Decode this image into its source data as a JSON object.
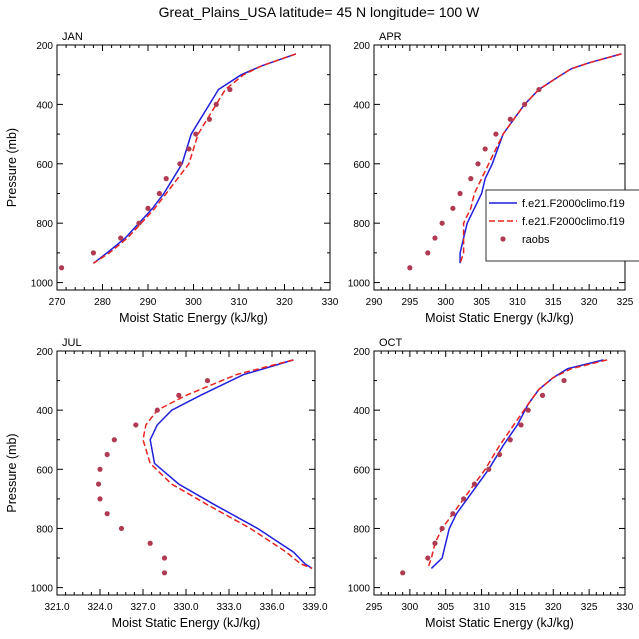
{
  "title": "Great_Plains_USA  latitude= 45 N longitude= 100 W",
  "series_names": [
    "f.e21.F2000climo.f19",
    "f.e21.F2000climo.f19",
    "raobs"
  ],
  "colors": {
    "model1": "#1f1fdd",
    "model2": "#e8231f",
    "obs": "#b03a52"
  },
  "chart_data": [
    {
      "type": "line",
      "panel": "JAN",
      "xlabel": "Moist Static Energy (kJ/kg)",
      "ylabel": "Pressure (mb)",
      "xlim": [
        270,
        330
      ],
      "ylim": [
        1025,
        200
      ],
      "xticks": [
        "270",
        "280",
        "290",
        "300",
        "310",
        "320",
        "330"
      ],
      "yticks": [
        "200",
        "400",
        "600",
        "800",
        "1000"
      ],
      "legend": false,
      "series": [
        {
          "name": "f.e21.F2000climo.f19",
          "style": "solid",
          "points": [
            [
              322.5,
              230
            ],
            [
              315,
              270
            ],
            [
              310.5,
              300
            ],
            [
              305.5,
              350
            ],
            [
              303.5,
              400
            ],
            [
              301.5,
              450
            ],
            [
              299.5,
              500
            ],
            [
              297.5,
              600
            ],
            [
              295.5,
              650
            ],
            [
              293.5,
              700
            ],
            [
              291,
              750
            ],
            [
              288,
              800
            ],
            [
              285,
              850
            ],
            [
              281,
              900
            ],
            [
              278,
              935
            ]
          ]
        },
        {
          "name": "f.e21.F2000climo.f19",
          "style": "dashed",
          "points": [
            [
              322.5,
              230
            ],
            [
              315,
              270
            ],
            [
              311,
              300
            ],
            [
              307,
              350
            ],
            [
              305,
              400
            ],
            [
              303,
              450
            ],
            [
              301,
              500
            ],
            [
              299,
              600
            ],
            [
              296.5,
              650
            ],
            [
              294,
              700
            ],
            [
              291.5,
              750
            ],
            [
              288.5,
              800
            ],
            [
              285.5,
              850
            ],
            [
              281.5,
              900
            ],
            [
              278,
              935
            ]
          ]
        },
        {
          "name": "raobs",
          "style": "points",
          "points": [
            [
              271,
              950
            ],
            [
              278,
              900
            ],
            [
              284,
              850
            ],
            [
              288,
              800
            ],
            [
              290,
              750
            ],
            [
              292.5,
              700
            ],
            [
              294,
              650
            ],
            [
              297,
              600
            ],
            [
              299,
              550
            ],
            [
              300.5,
              500
            ],
            [
              303.5,
              450
            ],
            [
              305,
              400
            ],
            [
              308,
              350
            ]
          ]
        }
      ]
    },
    {
      "type": "line",
      "panel": "APR",
      "xlabel": "Moist Static Energy (kJ/kg)",
      "ylabel": "",
      "xlim": [
        290,
        325
      ],
      "ylim": [
        1025,
        200
      ],
      "xticks": [
        "290",
        "295",
        "300",
        "305",
        "310",
        "315",
        "320",
        "325"
      ],
      "yticks": [
        "200",
        "400",
        "600",
        "800",
        "1000"
      ],
      "legend": true,
      "legend_position": "right",
      "series": [
        {
          "name": "f.e21.F2000climo.f19",
          "style": "solid",
          "points": [
            [
              324.5,
              230
            ],
            [
              320,
              260
            ],
            [
              317.5,
              280
            ],
            [
              315.5,
              310
            ],
            [
              313,
              350
            ],
            [
              311,
              400
            ],
            [
              309.5,
              450
            ],
            [
              308,
              500
            ],
            [
              306.5,
              600
            ],
            [
              305.5,
              650
            ],
            [
              305,
              700
            ],
            [
              304,
              750
            ],
            [
              303,
              800
            ],
            [
              302.5,
              850
            ],
            [
              302,
              900
            ],
            [
              302,
              935
            ]
          ]
        },
        {
          "name": "f.e21.F2000climo.f19",
          "style": "dashed",
          "points": [
            [
              324.5,
              230
            ],
            [
              320,
              260
            ],
            [
              317.5,
              280
            ],
            [
              315.5,
              310
            ],
            [
              313,
              350
            ],
            [
              311,
              400
            ],
            [
              309.5,
              450
            ],
            [
              308,
              500
            ],
            [
              306,
              600
            ],
            [
              305,
              650
            ],
            [
              304,
              700
            ],
            [
              303.5,
              750
            ],
            [
              302.5,
              800
            ],
            [
              302.5,
              850
            ],
            [
              302.5,
              900
            ],
            [
              302,
              935
            ]
          ]
        },
        {
          "name": "raobs",
          "style": "points",
          "points": [
            [
              295,
              950
            ],
            [
              297.5,
              900
            ],
            [
              298.5,
              850
            ],
            [
              299.5,
              800
            ],
            [
              301,
              750
            ],
            [
              302,
              700
            ],
            [
              303.5,
              650
            ],
            [
              304.5,
              600
            ],
            [
              305.5,
              550
            ],
            [
              307,
              500
            ],
            [
              309,
              450
            ],
            [
              311,
              400
            ],
            [
              313,
              350
            ]
          ]
        }
      ]
    },
    {
      "type": "line",
      "panel": "JUL",
      "xlabel": "Moist Static Energy (kJ/kg)",
      "ylabel": "Pressure (mb)",
      "xlim": [
        321,
        339
      ],
      "ylim": [
        1025,
        200
      ],
      "xticks": [
        "321.0",
        "324.0",
        "327.0",
        "330.0",
        "333.0",
        "336.0",
        "339.0"
      ],
      "yticks": [
        "200",
        "400",
        "600",
        "800",
        "1000"
      ],
      "legend": false,
      "series": [
        {
          "name": "f.e21.F2000climo.f19",
          "style": "solid",
          "points": [
            [
              337.5,
              230
            ],
            [
              334,
              280
            ],
            [
              331,
              350
            ],
            [
              329,
              400
            ],
            [
              328,
              450
            ],
            [
              327.5,
              500
            ],
            [
              327.8,
              580
            ],
            [
              329.5,
              650
            ],
            [
              332,
              720
            ],
            [
              335,
              800
            ],
            [
              337.5,
              880
            ],
            [
              338.3,
              920
            ],
            [
              338.8,
              935
            ]
          ]
        },
        {
          "name": "f.e21.F2000climo.f19",
          "style": "dashed",
          "points": [
            [
              337.5,
              230
            ],
            [
              333.5,
              280
            ],
            [
              330,
              350
            ],
            [
              328,
              400
            ],
            [
              327.2,
              450
            ],
            [
              327,
              500
            ],
            [
              327.5,
              580
            ],
            [
              329,
              650
            ],
            [
              331.5,
              720
            ],
            [
              334.5,
              800
            ],
            [
              337,
              880
            ],
            [
              338,
              920
            ],
            [
              338.8,
              935
            ]
          ]
        },
        {
          "name": "raobs",
          "style": "points",
          "points": [
            [
              328.5,
              950
            ],
            [
              328.5,
              900
            ],
            [
              327.5,
              850
            ],
            [
              325.5,
              800
            ],
            [
              324.5,
              750
            ],
            [
              324,
              700
            ],
            [
              323.9,
              650
            ],
            [
              324,
              600
            ],
            [
              324.5,
              550
            ],
            [
              325,
              500
            ],
            [
              326.5,
              450
            ],
            [
              328,
              400
            ],
            [
              329.5,
              350
            ],
            [
              331.5,
              300
            ]
          ]
        }
      ]
    },
    {
      "type": "line",
      "panel": "OCT",
      "xlabel": "Moist Static Energy (kJ/kg)",
      "ylabel": "",
      "xlim": [
        295,
        330
      ],
      "ylim": [
        1025,
        200
      ],
      "xticks": [
        "295",
        "300",
        "305",
        "310",
        "315",
        "320",
        "325",
        "330"
      ],
      "yticks": [
        "200",
        "400",
        "600",
        "800",
        "1000"
      ],
      "legend": false,
      "series": [
        {
          "name": "f.e21.F2000climo.f19",
          "style": "solid",
          "points": [
            [
              327,
              230
            ],
            [
              322,
              260
            ],
            [
              320,
              290
            ],
            [
              318,
              330
            ],
            [
              316.5,
              380
            ],
            [
              315,
              450
            ],
            [
              313,
              520
            ],
            [
              311,
              600
            ],
            [
              309.5,
              650
            ],
            [
              308,
              700
            ],
            [
              306.5,
              750
            ],
            [
              305.5,
              800
            ],
            [
              305,
              850
            ],
            [
              304.5,
              900
            ],
            [
              303,
              935
            ]
          ]
        },
        {
          "name": "f.e21.F2000climo.f19",
          "style": "dashed",
          "points": [
            [
              327.5,
              230
            ],
            [
              322.5,
              260
            ],
            [
              320,
              290
            ],
            [
              318,
              330
            ],
            [
              316.5,
              380
            ],
            [
              314.5,
              450
            ],
            [
              312.5,
              520
            ],
            [
              310.5,
              600
            ],
            [
              309,
              650
            ],
            [
              307.5,
              700
            ],
            [
              306,
              750
            ],
            [
              304.5,
              800
            ],
            [
              303.5,
              850
            ],
            [
              303,
              900
            ],
            [
              302.5,
              935
            ]
          ]
        },
        {
          "name": "raobs",
          "style": "points",
          "points": [
            [
              299,
              950
            ],
            [
              302.5,
              900
            ],
            [
              303.5,
              850
            ],
            [
              304.5,
              800
            ],
            [
              306,
              750
            ],
            [
              307.5,
              700
            ],
            [
              309,
              650
            ],
            [
              311,
              600
            ],
            [
              312.5,
              550
            ],
            [
              314,
              500
            ],
            [
              315.5,
              450
            ],
            [
              316.5,
              400
            ],
            [
              318.5,
              350
            ],
            [
              321.5,
              300
            ]
          ]
        }
      ]
    }
  ]
}
